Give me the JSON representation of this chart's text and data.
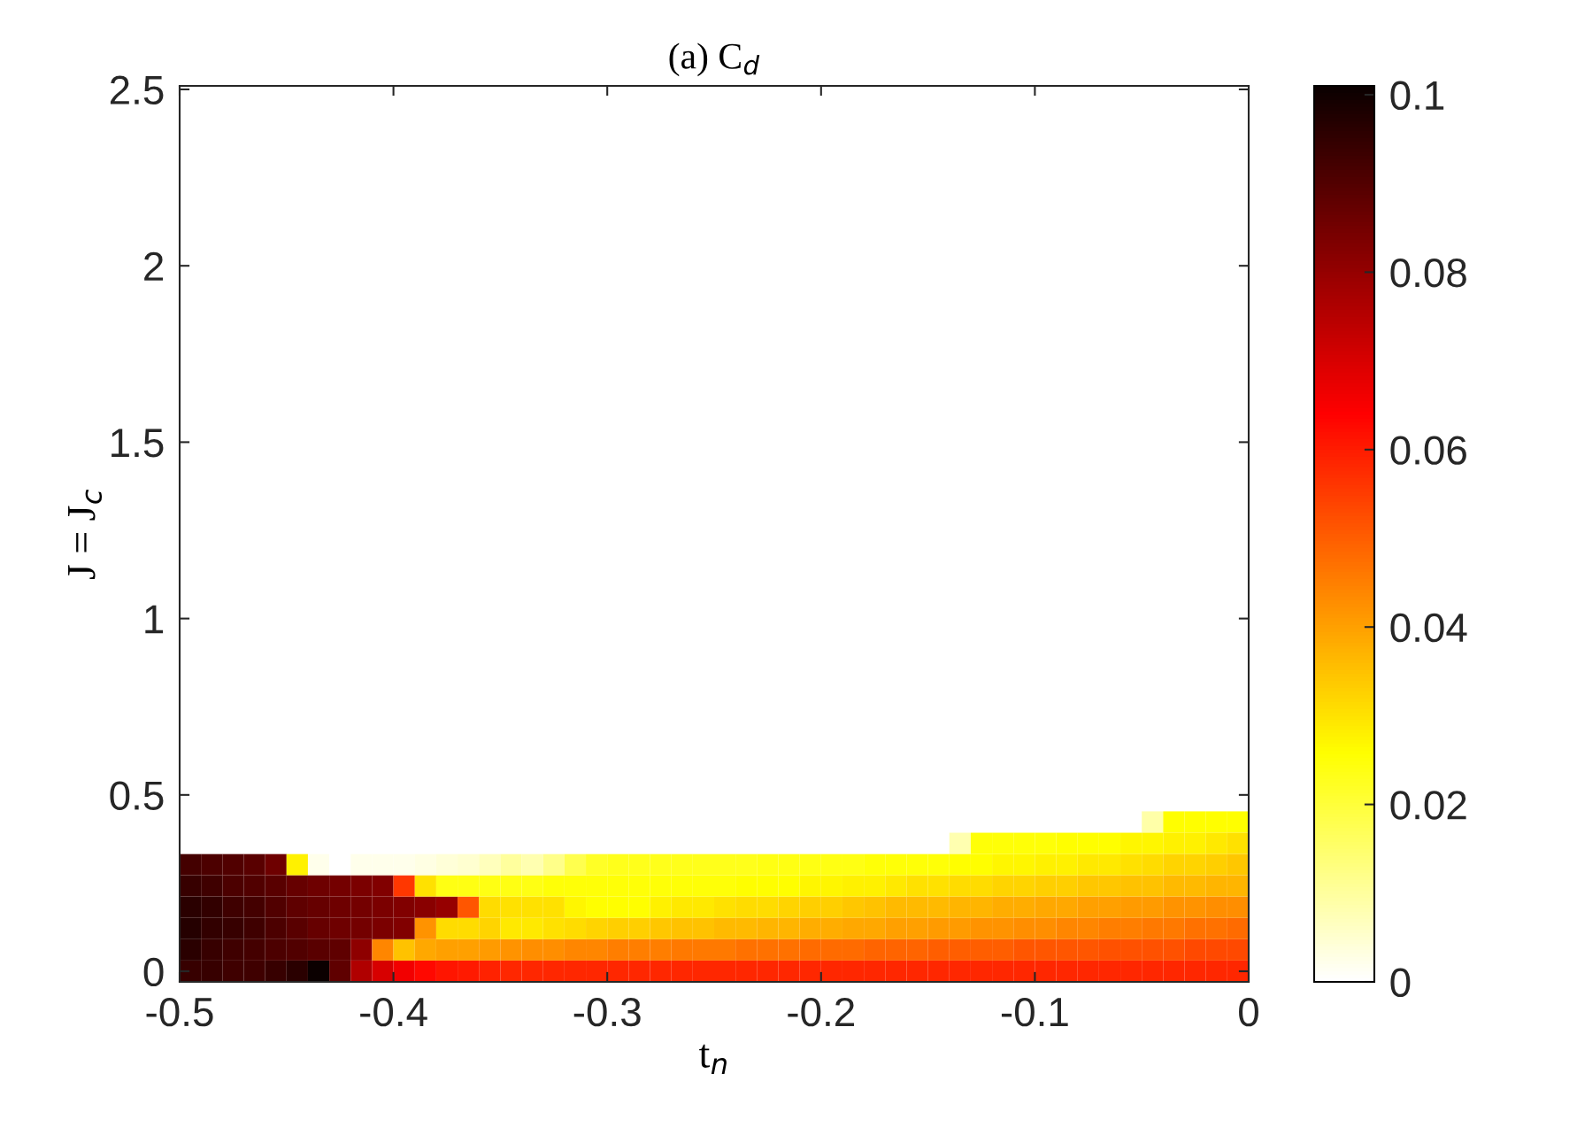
{
  "chart_data": {
    "type": "heatmap",
    "title": "(a) C$_{d}$",
    "xlabel": "t$_{n}$",
    "ylabel": "J = J$_{c}$",
    "xlim": [
      -0.5,
      0
    ],
    "ylim": [
      -0.03,
      2.51
    ],
    "xticks": [
      {
        "value": -0.5,
        "label": "-0.5"
      },
      {
        "value": -0.4,
        "label": "-0.4"
      },
      {
        "value": -0.3,
        "label": "-0.3"
      },
      {
        "value": -0.2,
        "label": "-0.2"
      },
      {
        "value": -0.1,
        "label": "-0.1"
      },
      0
    ],
    "yticks": [
      0,
      0.5,
      1,
      1.5,
      2,
      2.5
    ],
    "clim": [
      0,
      0.101
    ],
    "cticks": [
      0,
      0.02,
      0.04,
      0.06,
      0.08,
      0.1
    ],
    "cells": [
      [
        0,
        0,
        0,
        0,
        0,
        0,
        0,
        0,
        0,
        0,
        0,
        0,
        0,
        0,
        0,
        0,
        0,
        0,
        0,
        0,
        0,
        0,
        0,
        0,
        0,
        0,
        0,
        0,
        0,
        0,
        0,
        0,
        0,
        0,
        0,
        0,
        0,
        0,
        0,
        0,
        0,
        0,
        0,
        0,
        0,
        0,
        0,
        0,
        0,
        0
      ],
      [
        0,
        0,
        0,
        0,
        0,
        0,
        0,
        0,
        0,
        0,
        0,
        0,
        0,
        0,
        0,
        0,
        0,
        0,
        0,
        0,
        0,
        0,
        0,
        0,
        0,
        0,
        0,
        0,
        0,
        0,
        0,
        0,
        0,
        0,
        0,
        0,
        0,
        0,
        0,
        0,
        0,
        0,
        0,
        0,
        0,
        0,
        0,
        0,
        0,
        0
      ],
      [
        0,
        0,
        0,
        0,
        0,
        0,
        0,
        0,
        0,
        0,
        0,
        0,
        0,
        0,
        0,
        0,
        0,
        0,
        0,
        0,
        0,
        0,
        0,
        0,
        0,
        0,
        0,
        0,
        0,
        0,
        0,
        0,
        0,
        0,
        0,
        0,
        0,
        0,
        0,
        0,
        0,
        0,
        0,
        0,
        0,
        0,
        0,
        0,
        0,
        0
      ],
      [
        0,
        0,
        0,
        0,
        0,
        0,
        0,
        0,
        0,
        0,
        0,
        0,
        0,
        0,
        0,
        0,
        0,
        0,
        0,
        0,
        0,
        0,
        0,
        0,
        0,
        0,
        0,
        0,
        0,
        0,
        0,
        0,
        0,
        0,
        0,
        0,
        0,
        0,
        0,
        0,
        0,
        0,
        0,
        0,
        0,
        0,
        0,
        0,
        0,
        0
      ],
      [
        0,
        0,
        0,
        0,
        0,
        0,
        0,
        0,
        0,
        0,
        0,
        0,
        0,
        0,
        0,
        0,
        0,
        0,
        0,
        0,
        0,
        0,
        0,
        0,
        0,
        0,
        0,
        0,
        0,
        0,
        0,
        0,
        0,
        0,
        0,
        0,
        0,
        0,
        0,
        0,
        0,
        0,
        0,
        0,
        0,
        0,
        0,
        0,
        0,
        0
      ],
      [
        0,
        0,
        0,
        0,
        0,
        0,
        0,
        0,
        0,
        0,
        0,
        0,
        0,
        0,
        0,
        0,
        0,
        0,
        0,
        0,
        0,
        0,
        0,
        0,
        0,
        0,
        0,
        0,
        0,
        0,
        0,
        0,
        0,
        0,
        0,
        0,
        0,
        0,
        0,
        0,
        0,
        0,
        0,
        0,
        0,
        0,
        0,
        0,
        0,
        0
      ],
      [
        0,
        0,
        0,
        0,
        0,
        0,
        0,
        0,
        0,
        0,
        0,
        0,
        0,
        0,
        0,
        0,
        0,
        0,
        0,
        0,
        0,
        0,
        0,
        0,
        0,
        0,
        0,
        0,
        0,
        0,
        0,
        0,
        0,
        0,
        0,
        0,
        0,
        0,
        0,
        0,
        0,
        0,
        0,
        0,
        0,
        0,
        0,
        0,
        0,
        0
      ],
      [
        0,
        0,
        0,
        0,
        0,
        0,
        0,
        0,
        0,
        0,
        0,
        0,
        0,
        0,
        0,
        0,
        0,
        0,
        0,
        0,
        0,
        0,
        0,
        0,
        0,
        0,
        0,
        0,
        0,
        0,
        0,
        0,
        0,
        0,
        0,
        0,
        0,
        0,
        0,
        0,
        0,
        0,
        0,
        0,
        0,
        0,
        0,
        0,
        0,
        0
      ],
      [
        0,
        0,
        0,
        0,
        0,
        0,
        0,
        0,
        0,
        0,
        0,
        0,
        0,
        0,
        0,
        0,
        0,
        0,
        0,
        0,
        0,
        0,
        0,
        0,
        0,
        0,
        0,
        0,
        0,
        0,
        0,
        0,
        0,
        0,
        0,
        0,
        0,
        0,
        0,
        0,
        0,
        0,
        0,
        0,
        0,
        0,
        0,
        0,
        0,
        0
      ],
      [
        0,
        0,
        0,
        0,
        0,
        0,
        0,
        0,
        0,
        0,
        0,
        0,
        0,
        0,
        0,
        0,
        0,
        0,
        0,
        0,
        0,
        0,
        0,
        0,
        0,
        0,
        0,
        0,
        0,
        0,
        0,
        0,
        0,
        0,
        0,
        0,
        0,
        0,
        0,
        0,
        0,
        0,
        0,
        0,
        0,
        0,
        0,
        0,
        0,
        0
      ],
      [
        0,
        0,
        0,
        0,
        0,
        0,
        0,
        0,
        0,
        0,
        0,
        0,
        0,
        0,
        0,
        0,
        0,
        0,
        0,
        0,
        0,
        0,
        0,
        0,
        0,
        0,
        0,
        0,
        0,
        0,
        0,
        0,
        0,
        0,
        0,
        0,
        0,
        0,
        0,
        0,
        0,
        0,
        0,
        0,
        0,
        0,
        0,
        0,
        0,
        0
      ],
      [
        0,
        0,
        0,
        0,
        0,
        0,
        0,
        0,
        0,
        0,
        0,
        0,
        0,
        0,
        0,
        0,
        0,
        0,
        0,
        0,
        0,
        0,
        0,
        0,
        0,
        0,
        0,
        0,
        0,
        0,
        0,
        0,
        0,
        0,
        0,
        0,
        0,
        0,
        0,
        0,
        0,
        0,
        0,
        0,
        0,
        0,
        0,
        0,
        0,
        0
      ],
      [
        0,
        0,
        0,
        0,
        0,
        0,
        0,
        0,
        0,
        0,
        0,
        0,
        0,
        0,
        0,
        0,
        0,
        0,
        0,
        0,
        0,
        0,
        0,
        0,
        0,
        0,
        0,
        0,
        0,
        0,
        0,
        0,
        0,
        0,
        0,
        0,
        0,
        0,
        0,
        0,
        0,
        0,
        0,
        0,
        0,
        0,
        0,
        0,
        0,
        0
      ],
      [
        0,
        0,
        0,
        0,
        0,
        0,
        0,
        0,
        0,
        0,
        0,
        0,
        0,
        0,
        0,
        0,
        0,
        0,
        0,
        0,
        0,
        0,
        0,
        0,
        0,
        0,
        0,
        0,
        0,
        0,
        0,
        0,
        0,
        0,
        0,
        0,
        0,
        0,
        0,
        0,
        0,
        0,
        0,
        0,
        0,
        0,
        0,
        0,
        0,
        0
      ],
      [
        0,
        0,
        0,
        0,
        0,
        0,
        0,
        0,
        0,
        0,
        0,
        0,
        0,
        0,
        0,
        0,
        0,
        0,
        0,
        0,
        0,
        0,
        0,
        0,
        0,
        0,
        0,
        0,
        0,
        0,
        0,
        0,
        0,
        0,
        0,
        0,
        0,
        0,
        0,
        0,
        0,
        0,
        0,
        0,
        0,
        0,
        0,
        0,
        0,
        0
      ],
      [
        0,
        0,
        0,
        0,
        0,
        0,
        0,
        0,
        0,
        0,
        0,
        0,
        0,
        0,
        0,
        0,
        0,
        0,
        0,
        0,
        0,
        0,
        0,
        0,
        0,
        0,
        0,
        0,
        0,
        0,
        0,
        0,
        0,
        0,
        0,
        0,
        0,
        0,
        0,
        0,
        0,
        0,
        0,
        0,
        0,
        0,
        0,
        0,
        0,
        0
      ],
      [
        0,
        0,
        0,
        0,
        0,
        0,
        0,
        0,
        0,
        0,
        0,
        0,
        0,
        0,
        0,
        0,
        0,
        0,
        0,
        0,
        0,
        0,
        0,
        0,
        0,
        0,
        0,
        0,
        0,
        0,
        0,
        0,
        0,
        0,
        0,
        0,
        0,
        0,
        0,
        0,
        0,
        0,
        0,
        0,
        0,
        0,
        0,
        0,
        0,
        0
      ],
      [
        0,
        0,
        0,
        0,
        0,
        0,
        0,
        0,
        0,
        0,
        0,
        0,
        0,
        0,
        0,
        0,
        0,
        0,
        0,
        0,
        0,
        0,
        0,
        0,
        0,
        0,
        0,
        0,
        0,
        0,
        0,
        0,
        0,
        0,
        0,
        0,
        0,
        0,
        0,
        0,
        0,
        0,
        0,
        0,
        0,
        0,
        0,
        0,
        0,
        0
      ],
      [
        0,
        0,
        0,
        0,
        0,
        0,
        0,
        0,
        0,
        0,
        0,
        0,
        0,
        0,
        0,
        0,
        0,
        0,
        0,
        0,
        0,
        0,
        0,
        0,
        0,
        0,
        0,
        0,
        0,
        0,
        0,
        0,
        0,
        0,
        0,
        0,
        0,
        0,
        0,
        0,
        0,
        0,
        0,
        0,
        0,
        0,
        0,
        0,
        0,
        0
      ],
      [
        0,
        0,
        0,
        0,
        0,
        0,
        0,
        0,
        0,
        0,
        0,
        0,
        0,
        0,
        0,
        0,
        0,
        0,
        0,
        0,
        0,
        0,
        0,
        0,
        0,
        0,
        0,
        0,
        0,
        0,
        0,
        0,
        0,
        0,
        0,
        0,
        0,
        0,
        0,
        0,
        0,
        0,
        0,
        0,
        0,
        0,
        0,
        0,
        0,
        0
      ],
      [
        0,
        0,
        0,
        0,
        0,
        0,
        0,
        0,
        0,
        0,
        0,
        0,
        0,
        0,
        0,
        0,
        0,
        0,
        0,
        0,
        0,
        0,
        0,
        0,
        0,
        0,
        0,
        0,
        0,
        0,
        0,
        0,
        0,
        0,
        0,
        0,
        0,
        0,
        0,
        0,
        0,
        0,
        0,
        0,
        0,
        0,
        0,
        0,
        0,
        0
      ],
      [
        0,
        0,
        0,
        0,
        0,
        0,
        0,
        0,
        0,
        0,
        0,
        0,
        0,
        0,
        0,
        0,
        0,
        0,
        0,
        0,
        0,
        0,
        0,
        0,
        0,
        0,
        0,
        0,
        0,
        0,
        0,
        0,
        0,
        0,
        0,
        0,
        0,
        0,
        0,
        0,
        0,
        0,
        0,
        0,
        0,
        0,
        0,
        0,
        0,
        0
      ],
      [
        0,
        0,
        0,
        0,
        0,
        0,
        0,
        0,
        0,
        0,
        0,
        0,
        0,
        0,
        0,
        0,
        0,
        0,
        0,
        0,
        0,
        0,
        0,
        0,
        0,
        0,
        0,
        0,
        0,
        0,
        0,
        0,
        0,
        0,
        0,
        0,
        0,
        0,
        0,
        0,
        0,
        0,
        0,
        0,
        0,
        0,
        0,
        0,
        0,
        0
      ],
      [
        0,
        0,
        0,
        0,
        0,
        0,
        0,
        0,
        0,
        0,
        0,
        0,
        0,
        0,
        0,
        0,
        0,
        0,
        0,
        0,
        0,
        0,
        0,
        0,
        0,
        0,
        0,
        0,
        0,
        0,
        0,
        0,
        0,
        0,
        0,
        0,
        0,
        0,
        0,
        0,
        0,
        0,
        0,
        0,
        0,
        0,
        0,
        0,
        0,
        0
      ],
      [
        0,
        0,
        0,
        0,
        0,
        0,
        0,
        0,
        0,
        0,
        0,
        0,
        0,
        0,
        0,
        0,
        0,
        0,
        0,
        0,
        0,
        0,
        0,
        0,
        0,
        0,
        0,
        0,
        0,
        0,
        0,
        0,
        0,
        0,
        0,
        0,
        0,
        0,
        0,
        0,
        0,
        0,
        0,
        0,
        0,
        0,
        0,
        0,
        0,
        0
      ],
      [
        0,
        0,
        0,
        0,
        0,
        0,
        0,
        0,
        0,
        0,
        0,
        0,
        0,
        0,
        0,
        0,
        0,
        0,
        0,
        0,
        0,
        0,
        0,
        0,
        0,
        0,
        0,
        0,
        0,
        0,
        0,
        0,
        0,
        0,
        0,
        0,
        0,
        0,
        0,
        0,
        0,
        0,
        0,
        0,
        0,
        0,
        0,
        0,
        0,
        0
      ],
      [
        0,
        0,
        0,
        0,
        0,
        0,
        0,
        0,
        0,
        0,
        0,
        0,
        0,
        0,
        0,
        0,
        0,
        0,
        0,
        0,
        0,
        0,
        0,
        0,
        0,
        0,
        0,
        0,
        0,
        0,
        0,
        0,
        0,
        0,
        0,
        0,
        0,
        0,
        0,
        0,
        0,
        0,
        0,
        0,
        0,
        0,
        0,
        0,
        0,
        0
      ],
      [
        0,
        0,
        0,
        0,
        0,
        0,
        0,
        0,
        0,
        0,
        0,
        0,
        0,
        0,
        0,
        0,
        0,
        0,
        0,
        0,
        0,
        0,
        0,
        0,
        0,
        0,
        0,
        0,
        0,
        0,
        0,
        0,
        0,
        0,
        0,
        0,
        0,
        0,
        0,
        0,
        0,
        0,
        0,
        0,
        0,
        0,
        0,
        0,
        0,
        0
      ],
      [
        0,
        0,
        0,
        0,
        0,
        0,
        0,
        0,
        0,
        0,
        0,
        0,
        0,
        0,
        0,
        0,
        0,
        0,
        0,
        0,
        0,
        0,
        0,
        0,
        0,
        0,
        0,
        0,
        0,
        0,
        0,
        0,
        0,
        0,
        0,
        0,
        0,
        0,
        0,
        0,
        0,
        0,
        0,
        0,
        0,
        0,
        0,
        0,
        0,
        0
      ],
      [
        0,
        0,
        0,
        0,
        0,
        0,
        0,
        0,
        0,
        0,
        0,
        0,
        0,
        0,
        0,
        0,
        0,
        0,
        0,
        0,
        0,
        0,
        0,
        0,
        0,
        0,
        0,
        0,
        0,
        0,
        0,
        0,
        0,
        0,
        0,
        0,
        0,
        0,
        0,
        0,
        0,
        0,
        0,
        0,
        0,
        0,
        0,
        0,
        0,
        0
      ],
      [
        0,
        0,
        0,
        0,
        0,
        0,
        0,
        0,
        0,
        0,
        0,
        0,
        0,
        0,
        0,
        0,
        0,
        0,
        0,
        0,
        0,
        0,
        0,
        0,
        0,
        0,
        0,
        0,
        0,
        0,
        0,
        0,
        0,
        0,
        0,
        0,
        0,
        0,
        0,
        0,
        0,
        0,
        0,
        0,
        0,
        0,
        0,
        0,
        0,
        0
      ],
      [
        0,
        0,
        0,
        0,
        0,
        0,
        0,
        0,
        0,
        0,
        0,
        0,
        0,
        0,
        0,
        0,
        0,
        0,
        0,
        0,
        0,
        0,
        0,
        0,
        0,
        0,
        0,
        0,
        0,
        0,
        0,
        0,
        0,
        0,
        0,
        0,
        0,
        0,
        0,
        0,
        0,
        0,
        0,
        0,
        0,
        0,
        0,
        0,
        0,
        0
      ],
      [
        0,
        0,
        0,
        0,
        0,
        0,
        0,
        0,
        0,
        0,
        0,
        0,
        0,
        0,
        0,
        0,
        0,
        0,
        0,
        0,
        0,
        0,
        0,
        0,
        0,
        0,
        0,
        0,
        0,
        0,
        0,
        0,
        0,
        0,
        0,
        0,
        0,
        0,
        0,
        0,
        0,
        0,
        0,
        0,
        0,
        0,
        0,
        0,
        0,
        0
      ],
      [
        0,
        0,
        0,
        0,
        0,
        0,
        0,
        0,
        0,
        0,
        0,
        0,
        0,
        0,
        0,
        0,
        0,
        0,
        0,
        0,
        0,
        0,
        0,
        0,
        0,
        0,
        0,
        0,
        0,
        0,
        0,
        0,
        0,
        0,
        0,
        0,
        0,
        0,
        0,
        0,
        0,
        0,
        0,
        0,
        0,
        0,
        0,
        0,
        0,
        0
      ],
      [
        0,
        0,
        0,
        0,
        0,
        0,
        0,
        0,
        0,
        0,
        0,
        0,
        0,
        0,
        0,
        0,
        0,
        0,
        0,
        0,
        0,
        0,
        0,
        0,
        0,
        0,
        0,
        0,
        0,
        0,
        0,
        0,
        0,
        0,
        0,
        0,
        0,
        0,
        0,
        0,
        0,
        0,
        0,
        0,
        0,
        0.009,
        0.026,
        0.026,
        0.026,
        0.026
      ],
      [
        0,
        0,
        0,
        0,
        0,
        0,
        0,
        0,
        0,
        0,
        0,
        0,
        0,
        0,
        0,
        0,
        0,
        0,
        0,
        0,
        0,
        0,
        0,
        0,
        0,
        0,
        0,
        0,
        0,
        0,
        0,
        0,
        0,
        0,
        0,
        0,
        0.008,
        0.025,
        0.025,
        0.025,
        0.025,
        0.026,
        0.026,
        0.026,
        0.027,
        0.027,
        0.028,
        0.028,
        0.029,
        0.03
      ],
      [
        0.092,
        0.091,
        0.09,
        0.089,
        0.086,
        0.028,
        0.002,
        0,
        0.002,
        0.002,
        0.002,
        0.003,
        0.004,
        0.005,
        0.007,
        0.01,
        0.008,
        0.012,
        0.018,
        0.022,
        0.023,
        0.023,
        0.023,
        0.023,
        0.023,
        0.023,
        0.023,
        0.024,
        0.024,
        0.024,
        0.024,
        0.024,
        0.025,
        0.025,
        0.025,
        0.025,
        0.026,
        0.026,
        0.027,
        0.027,
        0.028,
        0.028,
        0.029,
        0.029,
        0.03,
        0.031,
        0.032,
        0.032,
        0.033,
        0.034
      ],
      [
        0.094,
        0.093,
        0.091,
        0.09,
        0.089,
        0.087,
        0.086,
        0.085,
        0.084,
        0.083,
        0.056,
        0.03,
        0.024,
        0.024,
        0.024,
        0.024,
        0.024,
        0.025,
        0.025,
        0.025,
        0.025,
        0.025,
        0.025,
        0.025,
        0.025,
        0.025,
        0.026,
        0.026,
        0.026,
        0.027,
        0.027,
        0.028,
        0.028,
        0.029,
        0.03,
        0.03,
        0.031,
        0.031,
        0.032,
        0.032,
        0.033,
        0.033,
        0.034,
        0.034,
        0.035,
        0.035,
        0.036,
        0.036,
        0.037,
        0.037
      ],
      [
        0.096,
        0.095,
        0.093,
        0.092,
        0.09,
        0.088,
        0.087,
        0.086,
        0.085,
        0.084,
        0.083,
        0.082,
        0.08,
        0.051,
        0.031,
        0.03,
        0.03,
        0.03,
        0.027,
        0.026,
        0.026,
        0.026,
        0.028,
        0.029,
        0.029,
        0.03,
        0.031,
        0.031,
        0.032,
        0.033,
        0.033,
        0.034,
        0.035,
        0.036,
        0.036,
        0.036,
        0.037,
        0.037,
        0.038,
        0.038,
        0.039,
        0.039,
        0.04,
        0.04,
        0.041,
        0.041,
        0.042,
        0.042,
        0.043,
        0.043
      ],
      [
        0.097,
        0.095,
        0.094,
        0.093,
        0.091,
        0.089,
        0.087,
        0.086,
        0.085,
        0.084,
        0.083,
        0.042,
        0.031,
        0.031,
        0.032,
        0.029,
        0.029,
        0.03,
        0.031,
        0.032,
        0.033,
        0.033,
        0.034,
        0.035,
        0.035,
        0.036,
        0.036,
        0.037,
        0.037,
        0.038,
        0.038,
        0.039,
        0.039,
        0.04,
        0.04,
        0.041,
        0.041,
        0.042,
        0.042,
        0.043,
        0.043,
        0.044,
        0.044,
        0.045,
        0.045,
        0.046,
        0.046,
        0.047,
        0.047,
        0.048
      ],
      [
        0.096,
        0.094,
        0.093,
        0.092,
        0.091,
        0.09,
        0.089,
        0.088,
        0.081,
        0.044,
        0.035,
        0.039,
        0.04,
        0.04,
        0.041,
        0.042,
        0.043,
        0.043,
        0.044,
        0.044,
        0.045,
        0.045,
        0.045,
        0.046,
        0.046,
        0.046,
        0.047,
        0.047,
        0.047,
        0.048,
        0.048,
        0.048,
        0.049,
        0.049,
        0.049,
        0.05,
        0.05,
        0.05,
        0.05,
        0.051,
        0.051,
        0.051,
        0.051,
        0.052,
        0.052,
        0.052,
        0.052,
        0.053,
        0.053,
        0.053
      ],
      [
        0.094,
        0.094,
        0.093,
        0.093,
        0.094,
        0.096,
        0.101,
        0.088,
        0.076,
        0.07,
        0.066,
        0.063,
        0.061,
        0.06,
        0.059,
        0.058,
        0.058,
        0.058,
        0.058,
        0.058,
        0.058,
        0.058,
        0.058,
        0.058,
        0.058,
        0.058,
        0.058,
        0.058,
        0.058,
        0.058,
        0.058,
        0.058,
        0.058,
        0.058,
        0.058,
        0.058,
        0.058,
        0.058,
        0.058,
        0.058,
        0.058,
        0.058,
        0.058,
        0.058,
        0.058,
        0.058,
        0.058,
        0.058,
        0.058,
        0.058
      ]
    ]
  }
}
